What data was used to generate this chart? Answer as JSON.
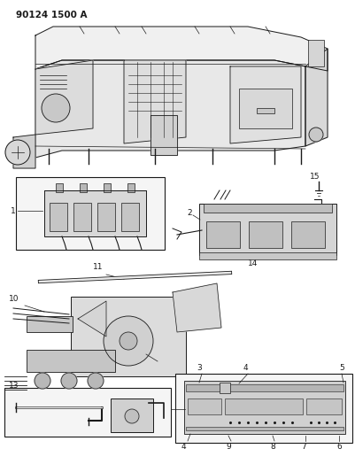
{
  "title": "90124 1500 A",
  "bg_color": "#ffffff",
  "lc": "#1a1a1a",
  "fig_width": 4.02,
  "fig_height": 5.33,
  "dpi": 100,
  "label_fs": 6.5,
  "title_fs": 7.5
}
